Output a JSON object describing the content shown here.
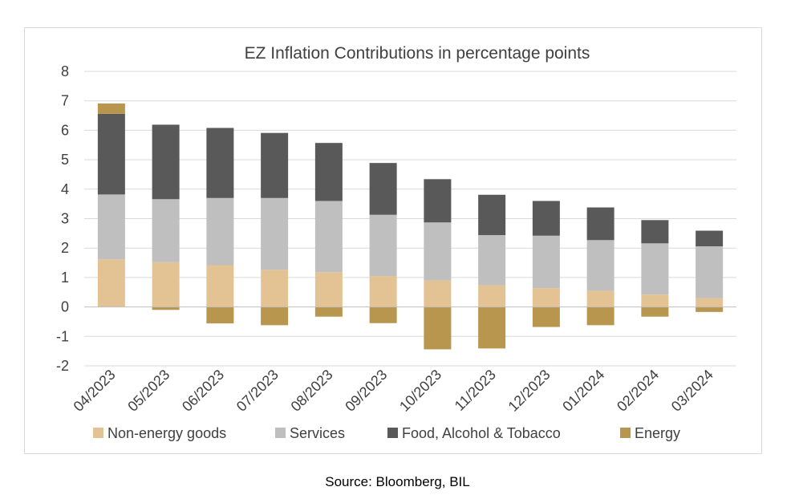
{
  "source": "Source: Bloomberg, BIL",
  "chart_data": {
    "type": "bar",
    "stacked": true,
    "title": "EZ Inflation Contributions in percentage points",
    "xlabel": "",
    "ylabel": "",
    "ylim": [
      -2,
      8
    ],
    "yticks": [
      "-2",
      "-1",
      "0",
      "1",
      "2",
      "3",
      "4",
      "5",
      "6",
      "7",
      "8"
    ],
    "grid": true,
    "legend_position": "bottom",
    "categories": [
      "04/2023",
      "05/2023",
      "06/2023",
      "07/2023",
      "08/2023",
      "09/2023",
      "10/2023",
      "11/2023",
      "12/2023",
      "01/2024",
      "02/2024",
      "03/2024"
    ],
    "series": [
      {
        "name": "Non-energy goods",
        "color": "#e3c294",
        "values": [
          1.62,
          1.52,
          1.42,
          1.26,
          1.18,
          1.05,
          0.9,
          0.74,
          0.64,
          0.55,
          0.42,
          0.3
        ]
      },
      {
        "name": "Services",
        "color": "#bfbfbf",
        "values": [
          2.2,
          2.14,
          2.28,
          2.44,
          2.42,
          2.08,
          1.97,
          1.7,
          1.78,
          1.72,
          1.74,
          1.76
        ]
      },
      {
        "name": "Food, Alcohol & Tobacco",
        "color": "#595959",
        "values": [
          2.74,
          2.53,
          2.38,
          2.21,
          1.97,
          1.76,
          1.47,
          1.37,
          1.18,
          1.11,
          0.79,
          0.53
        ]
      },
      {
        "name": "Energy",
        "color": "#b8964e",
        "values": [
          0.35,
          -0.1,
          -0.56,
          -0.62,
          -0.33,
          -0.55,
          -1.44,
          -1.41,
          -0.68,
          -0.62,
          -0.33,
          -0.17
        ]
      }
    ]
  }
}
